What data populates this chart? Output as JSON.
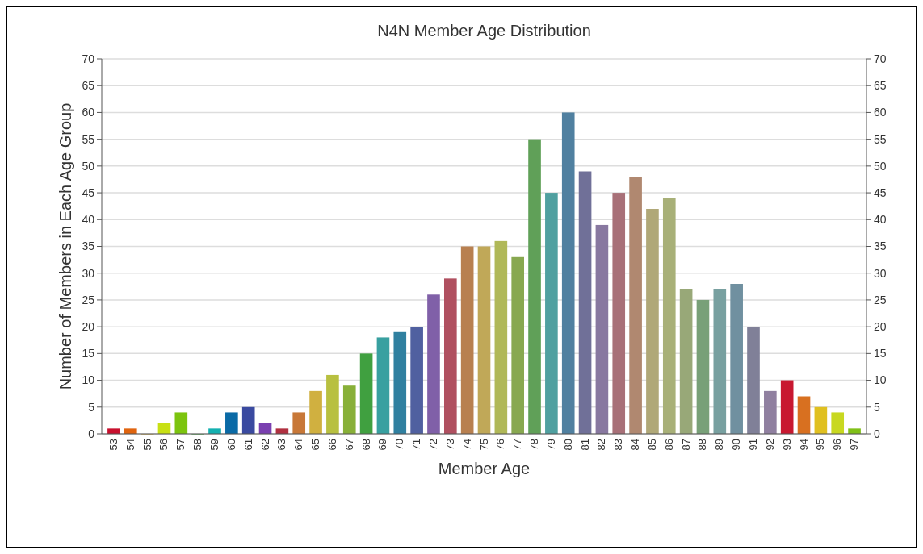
{
  "chart_data": {
    "type": "bar",
    "title": "N4N Member Age Distribution",
    "xlabel": "Member Age",
    "ylabel": "Number of Members in Each Age Group",
    "categories": [
      "53",
      "54",
      "55",
      "56",
      "57",
      "58",
      "59",
      "60",
      "61",
      "62",
      "63",
      "64",
      "65",
      "66",
      "67",
      "68",
      "69",
      "70",
      "71",
      "72",
      "73",
      "74",
      "75",
      "76",
      "77",
      "78",
      "79",
      "80",
      "81",
      "82",
      "83",
      "84",
      "85",
      "86",
      "87",
      "88",
      "89",
      "90",
      "91",
      "92",
      "93",
      "94",
      "95",
      "96",
      "97"
    ],
    "values": [
      1,
      1,
      0,
      2,
      4,
      0,
      1,
      4,
      5,
      2,
      1,
      4,
      8,
      11,
      9,
      15,
      18,
      19,
      20,
      26,
      29,
      35,
      35,
      36,
      33,
      55,
      45,
      60,
      49,
      39,
      45,
      48,
      42,
      44,
      27,
      25,
      27,
      28,
      20,
      8,
      10,
      7,
      5,
      4,
      1
    ],
    "colors": [
      "#c8102e",
      "#e0640f",
      "#d4a017",
      "#c8e014",
      "#7cc40e",
      "#1a9a1a",
      "#14b0b0",
      "#0a6aa6",
      "#3a4aa0",
      "#7a40b0",
      "#b03040",
      "#c87838",
      "#d0b040",
      "#b8c040",
      "#88b038",
      "#40a040",
      "#38a0a0",
      "#3080a0",
      "#5060a0",
      "#8060a8",
      "#b05060",
      "#b88050",
      "#c0a858",
      "#b0b858",
      "#88a850",
      "#60a058",
      "#50a0a0",
      "#5080a0",
      "#707098",
      "#8878a0",
      "#a87078",
      "#b08870",
      "#b0a878",
      "#a8b078",
      "#98a878",
      "#78a078",
      "#78a0a0",
      "#7090a0",
      "#808098",
      "#9080a0",
      "#c81830",
      "#d87020",
      "#e0c020",
      "#c8d820",
      "#80c018"
    ],
    "ylim": [
      0,
      70
    ],
    "yticks": [
      0,
      5,
      10,
      15,
      20,
      25,
      30,
      35,
      40,
      45,
      50,
      55,
      60,
      65,
      70
    ],
    "y2lim": [
      0,
      70
    ],
    "y2ticks": [
      0,
      5,
      10,
      15,
      20,
      25,
      30,
      35,
      40,
      45,
      50,
      55,
      60,
      65,
      70
    ],
    "grid": "y"
  }
}
